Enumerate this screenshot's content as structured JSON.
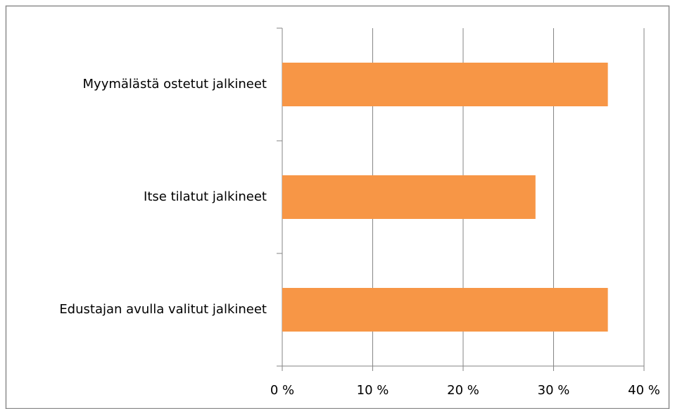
{
  "chart_data": {
    "type": "bar",
    "orientation": "horizontal",
    "categories": [
      "Myymälästä ostetut jalkineet",
      "Itse tilatut jalkineet",
      "Edustajan avulla valitut jalkineet"
    ],
    "values": [
      36,
      28,
      36
    ],
    "color": "#f79646",
    "xlim": [
      0,
      40
    ],
    "xticks": [
      {
        "value": 0,
        "label": "0 %"
      },
      {
        "value": 10,
        "label": "10 %"
      },
      {
        "value": 20,
        "label": "20 %"
      },
      {
        "value": 30,
        "label": "30 %"
      },
      {
        "value": 40,
        "label": "40 %"
      }
    ],
    "grid": true
  }
}
